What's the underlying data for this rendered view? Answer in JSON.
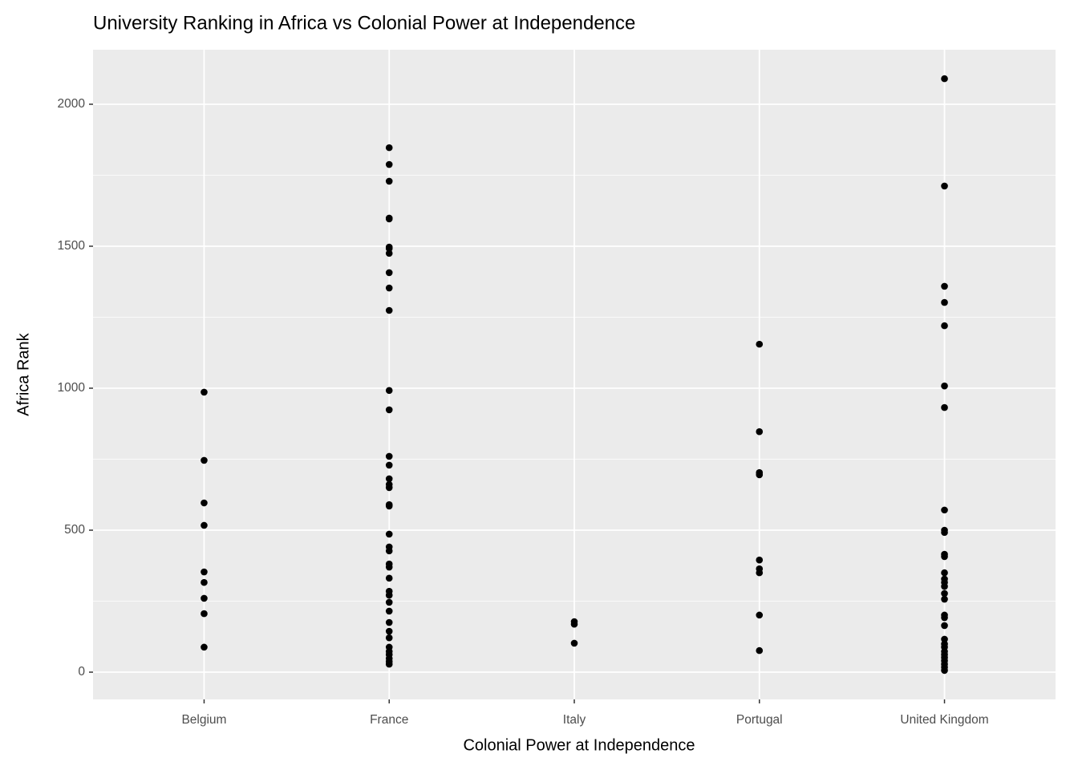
{
  "chart_data": {
    "type": "strip",
    "title": "University Ranking in Africa vs Colonial Power at Independence",
    "x_label": "Colonial Power at Independence",
    "y_label": "Africa Rank",
    "categories": [
      "Belgium",
      "France",
      "Italy",
      "Portugal",
      "United Kingdom"
    ],
    "values": [
      [
        986,
        746,
        596,
        517,
        353,
        316,
        260,
        206,
        88
      ],
      [
        1847,
        1788,
        1729,
        1599,
        1596,
        1497,
        1492,
        1475,
        1407,
        1353,
        1274,
        992,
        924,
        760,
        729,
        681,
        661,
        650,
        590,
        585,
        486,
        441,
        427,
        381,
        370,
        331,
        285,
        271,
        246,
        215,
        175,
        144,
        121,
        88,
        73,
        62,
        48,
        37,
        28
      ],
      [
        178,
        169,
        102
      ],
      [
        1155,
        847,
        703,
        695,
        395,
        364,
        350,
        201,
        76
      ],
      [
        2090,
        1712,
        1359,
        1302,
        1220,
        1008,
        932,
        571,
        500,
        492,
        415,
        407,
        350,
        328,
        316,
        302,
        277,
        257,
        201,
        192,
        164,
        116,
        99,
        88,
        73,
        62,
        51,
        40,
        28,
        17,
        6
      ]
    ],
    "color": "#000000",
    "ylim": [
      -96,
      2192
    ],
    "yticks": [
      0,
      500,
      1000,
      1500,
      2000
    ],
    "minor_yticks": [
      250,
      750,
      1250,
      1750
    ],
    "grid": true
  }
}
